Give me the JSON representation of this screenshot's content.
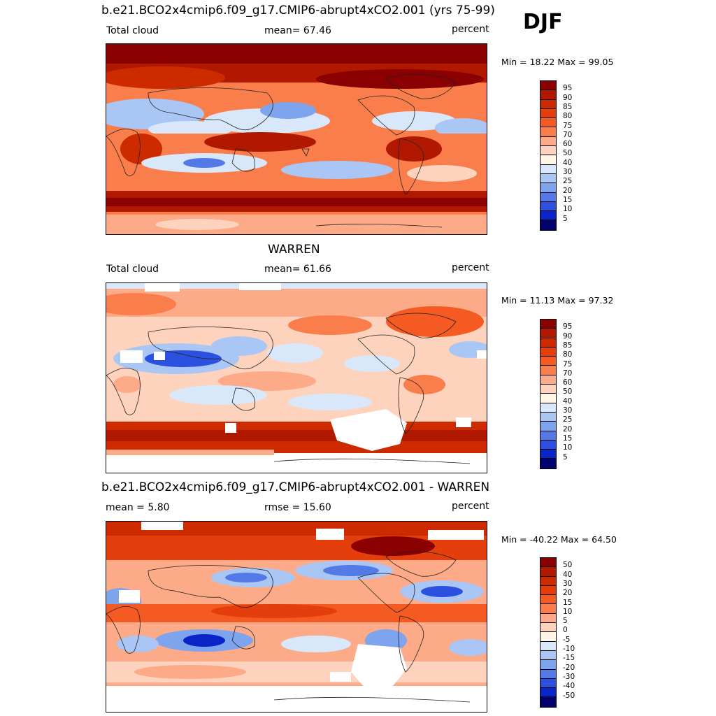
{
  "season": "DJF",
  "panels": [
    {
      "title": "b.e21.BCO2x4cmip6.f09_g17.CMIP6-abrupt4xCO2.001 (yrs 75-99)",
      "left": "Total cloud",
      "center": "mean=  67.46",
      "right": "percent",
      "minmax": "Min =  18.22 Max =  99.05",
      "levels": [
        "95",
        "90",
        "85",
        "80",
        "75",
        "70",
        "60",
        "50",
        "40",
        "30",
        "25",
        "20",
        "15",
        "10",
        "5"
      ],
      "palette": [
        "#8b0000",
        "#b01800",
        "#cd2a00",
        "#e43e0c",
        "#f45a22",
        "#fa7e4c",
        "#fcaa88",
        "#fdd3bd",
        "#fff6e6",
        "#d8e8fa",
        "#aac6f4",
        "#7ea4ee",
        "#547ae8",
        "#2c50e0",
        "#0a24c8",
        "#00006e"
      ]
    },
    {
      "title": "WARREN",
      "left": "Total cloud",
      "center": "mean=  61.66",
      "right": "percent",
      "minmax": "Min =  11.13 Max =  97.32",
      "levels": [
        "95",
        "90",
        "85",
        "80",
        "75",
        "70",
        "60",
        "50",
        "40",
        "30",
        "25",
        "20",
        "15",
        "10",
        "5"
      ],
      "palette": [
        "#8b0000",
        "#b01800",
        "#cd2a00",
        "#e43e0c",
        "#f45a22",
        "#fa7e4c",
        "#fcaa88",
        "#fdd3bd",
        "#fff6e6",
        "#d8e8fa",
        "#aac6f4",
        "#7ea4ee",
        "#547ae8",
        "#2c50e0",
        "#0a24c8",
        "#00006e"
      ]
    },
    {
      "title": "b.e21.BCO2x4cmip6.f09_g17.CMIP6-abrupt4xCO2.001 - WARREN",
      "left": "mean =   5.80",
      "center": "rmse =  15.60",
      "right": "percent",
      "minmax": "Min = -40.22 Max =  64.50",
      "levels": [
        "50",
        "40",
        "30",
        "20",
        "15",
        "10",
        "5",
        "0",
        "-5",
        "-10",
        "-15",
        "-20",
        "-30",
        "-40",
        "-50"
      ],
      "palette": [
        "#8b0000",
        "#b01800",
        "#cd2a00",
        "#e43e0c",
        "#f45a22",
        "#fa7e4c",
        "#fcaa88",
        "#fdd3bd",
        "#fff6e6",
        "#d8e8fa",
        "#aac6f4",
        "#7ea4ee",
        "#547ae8",
        "#2c50e0",
        "#0a24c8",
        "#00006e"
      ]
    }
  ]
}
